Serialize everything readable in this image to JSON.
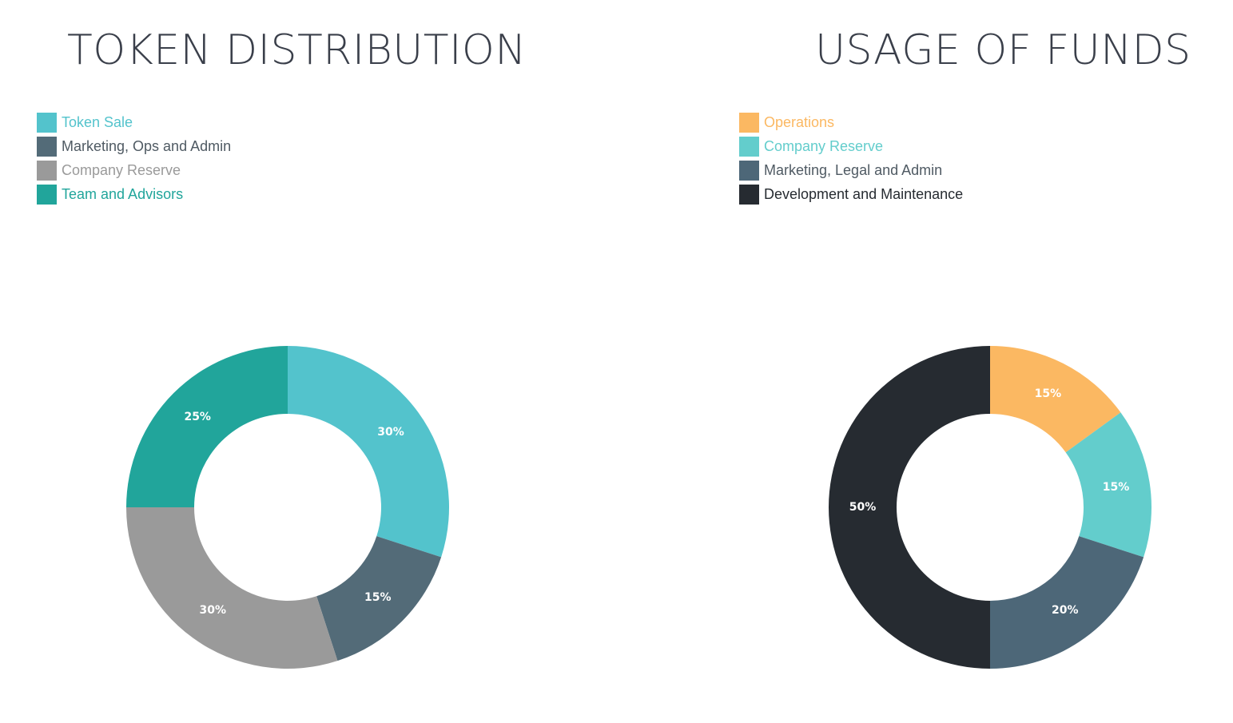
{
  "chart_data": [
    {
      "type": "pie",
      "title": "TOKEN DISTRIBUTION",
      "categories": [
        "Token Sale",
        "Marketing, Ops and Admin",
        "Company Reserve",
        "Team and Advisors"
      ],
      "values": [
        30,
        15,
        30,
        25
      ],
      "labels": [
        "30%",
        "15%",
        "30%",
        "25%"
      ],
      "colors": [
        "#53c3cc",
        "#536b78",
        "#9a9a9a",
        "#21a59b"
      ],
      "legend_position": "top-left"
    },
    {
      "type": "pie",
      "title": "USAGE OF FUNDS",
      "categories": [
        "Operations",
        "Company Reserve",
        "Marketing, Legal and Admin",
        "Development and Maintenance"
      ],
      "values": [
        15,
        15,
        20,
        50
      ],
      "labels": [
        "15%",
        "15%",
        "20%",
        "50%"
      ],
      "colors": [
        "#fbb862",
        "#63cdcc",
        "#4d6778",
        "#262b31"
      ],
      "legend_position": "top-left"
    }
  ]
}
